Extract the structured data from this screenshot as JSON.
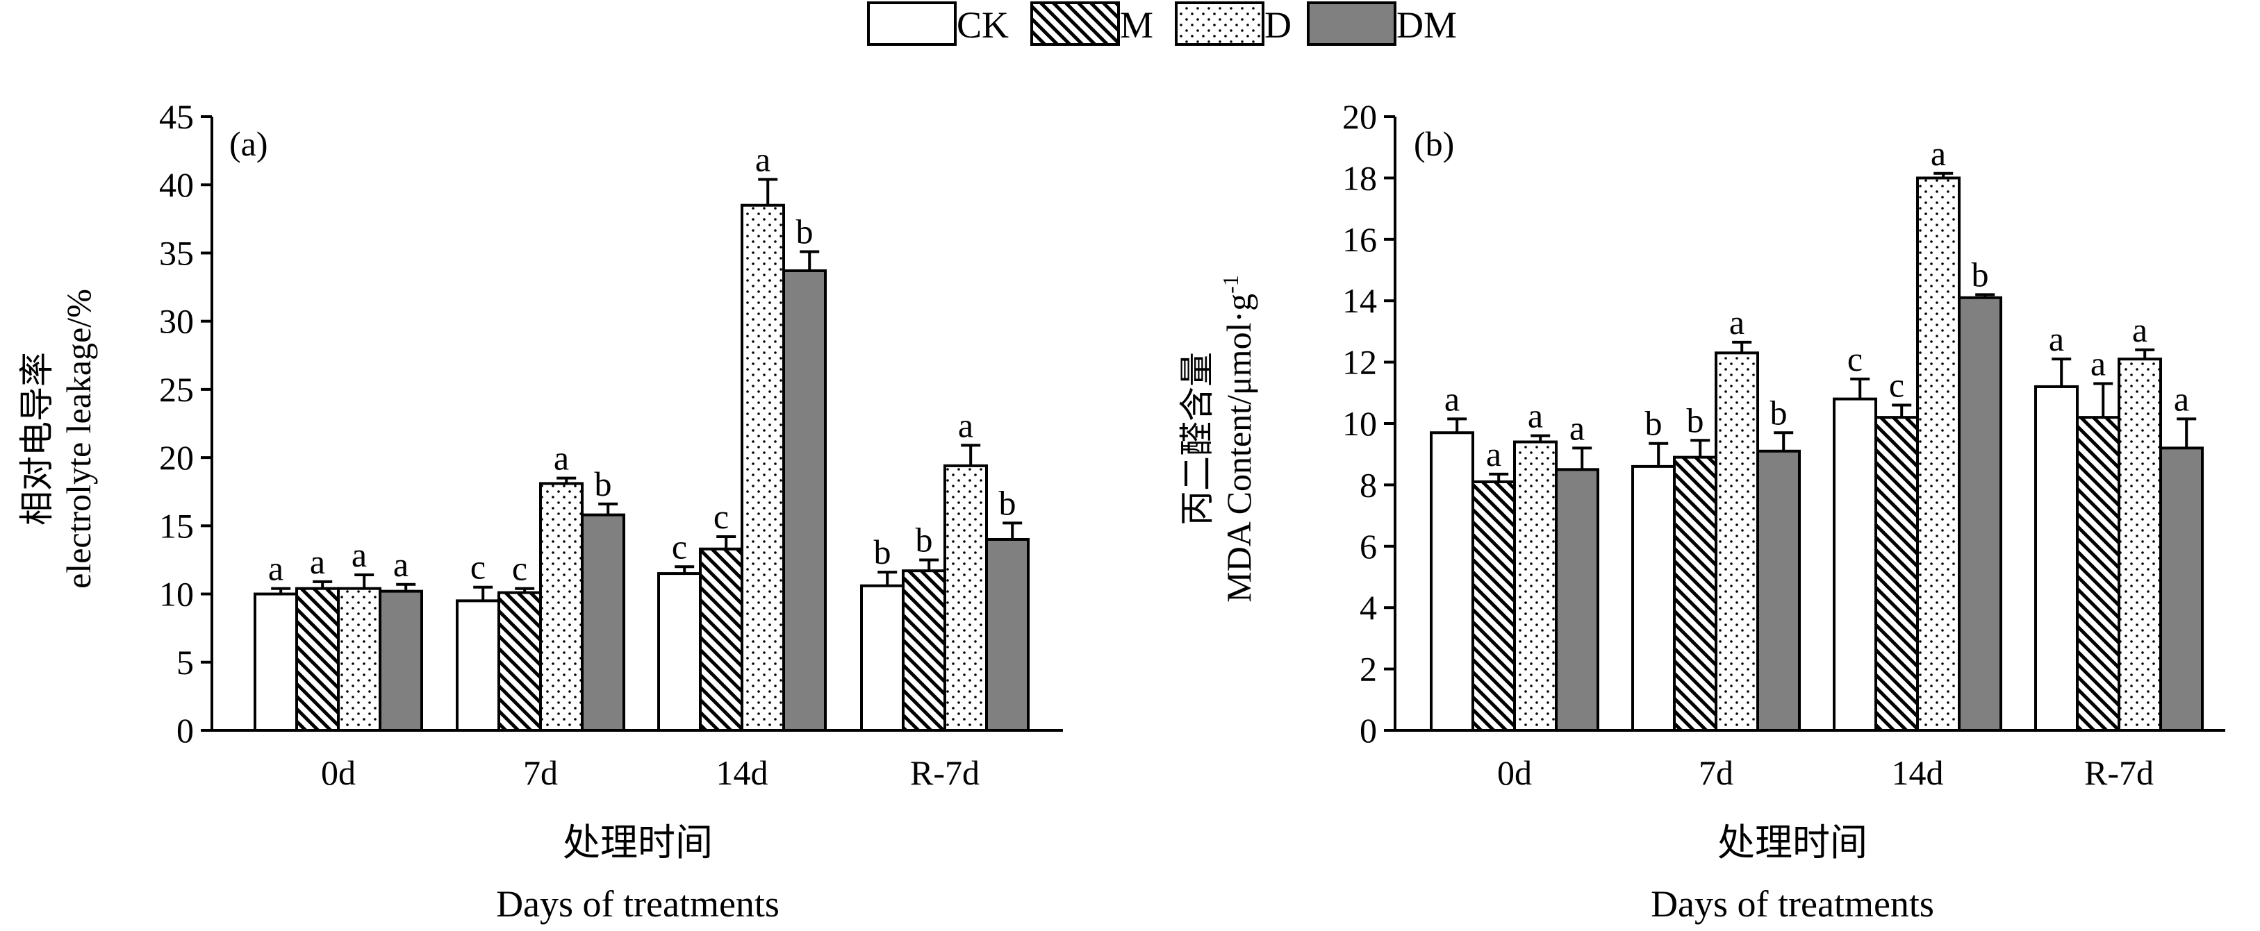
{
  "legend": {
    "entries": [
      {
        "name": "CK",
        "pattern": "white"
      },
      {
        "name": "M",
        "pattern": "hatch"
      },
      {
        "name": "D",
        "pattern": "dots"
      },
      {
        "name": "DM",
        "pattern": "gray"
      }
    ]
  },
  "colors": {
    "DM_fill": "#808080",
    "stroke": "#000000",
    "background": "#ffffff"
  },
  "chart_data": [
    {
      "type": "bar",
      "panel_label": "(a)",
      "ylabel_cn": "相对电导率",
      "ylabel_en": "electrolyte leakage/%",
      "xlabel_cn": "处理时间",
      "xlabel_en": "Days of treatments",
      "categories": [
        "0d",
        "7d",
        "14d",
        "R-7d"
      ],
      "ylim": [
        0,
        45
      ],
      "yticks": [
        0,
        5,
        10,
        15,
        20,
        25,
        30,
        35,
        40,
        45
      ],
      "legend_position": "top-center",
      "series": [
        {
          "name": "CK",
          "values": [
            10.0,
            9.5,
            11.5,
            10.6
          ],
          "errors": [
            0.4,
            1.0,
            0.5,
            1.0
          ],
          "letters": [
            "a",
            "c",
            "c",
            "b"
          ]
        },
        {
          "name": "M",
          "values": [
            10.4,
            10.1,
            13.3,
            11.7
          ],
          "errors": [
            0.5,
            0.3,
            0.9,
            0.8
          ],
          "letters": [
            "a",
            "c",
            "c",
            "b"
          ]
        },
        {
          "name": "D",
          "values": [
            10.4,
            18.1,
            38.5,
            19.4
          ],
          "errors": [
            1.0,
            0.4,
            1.9,
            1.5
          ],
          "letters": [
            "a",
            "a",
            "a",
            "a"
          ]
        },
        {
          "name": "DM",
          "values": [
            10.2,
            15.8,
            33.7,
            14.0
          ],
          "errors": [
            0.5,
            0.8,
            1.4,
            1.2
          ],
          "letters": [
            "a",
            "b",
            "b",
            "b"
          ]
        }
      ]
    },
    {
      "type": "bar",
      "panel_label": "(b)",
      "ylabel_cn": "丙二醛含量",
      "ylabel_en_main": "MDA Content/μmol·g",
      "ylabel_en_sup": "-1",
      "xlabel_cn": "处理时间",
      "xlabel_en": "Days of treatments",
      "categories": [
        "0d",
        "7d",
        "14d",
        "R-7d"
      ],
      "ylim": [
        0,
        20
      ],
      "yticks": [
        0,
        2,
        4,
        6,
        8,
        10,
        12,
        14,
        16,
        18,
        20
      ],
      "legend_position": "top-center",
      "series": [
        {
          "name": "CK",
          "values": [
            9.7,
            8.6,
            10.8,
            11.2
          ],
          "errors": [
            0.45,
            0.75,
            0.65,
            0.9
          ],
          "letters": [
            "a",
            "b",
            "c",
            "a"
          ]
        },
        {
          "name": "M",
          "values": [
            8.1,
            8.9,
            10.2,
            10.2
          ],
          "errors": [
            0.25,
            0.55,
            0.4,
            1.1
          ],
          "letters": [
            "a",
            "b",
            "c",
            "a"
          ]
        },
        {
          "name": "D",
          "values": [
            9.4,
            12.3,
            18.0,
            12.1
          ],
          "errors": [
            0.2,
            0.35,
            0.15,
            0.3
          ],
          "letters": [
            "a",
            "a",
            "a",
            "a"
          ]
        },
        {
          "name": "DM",
          "values": [
            8.5,
            9.1,
            14.1,
            9.2
          ],
          "errors": [
            0.7,
            0.6,
            0.1,
            0.95
          ],
          "letters": [
            "a",
            "b",
            "b",
            "a"
          ]
        }
      ]
    }
  ]
}
